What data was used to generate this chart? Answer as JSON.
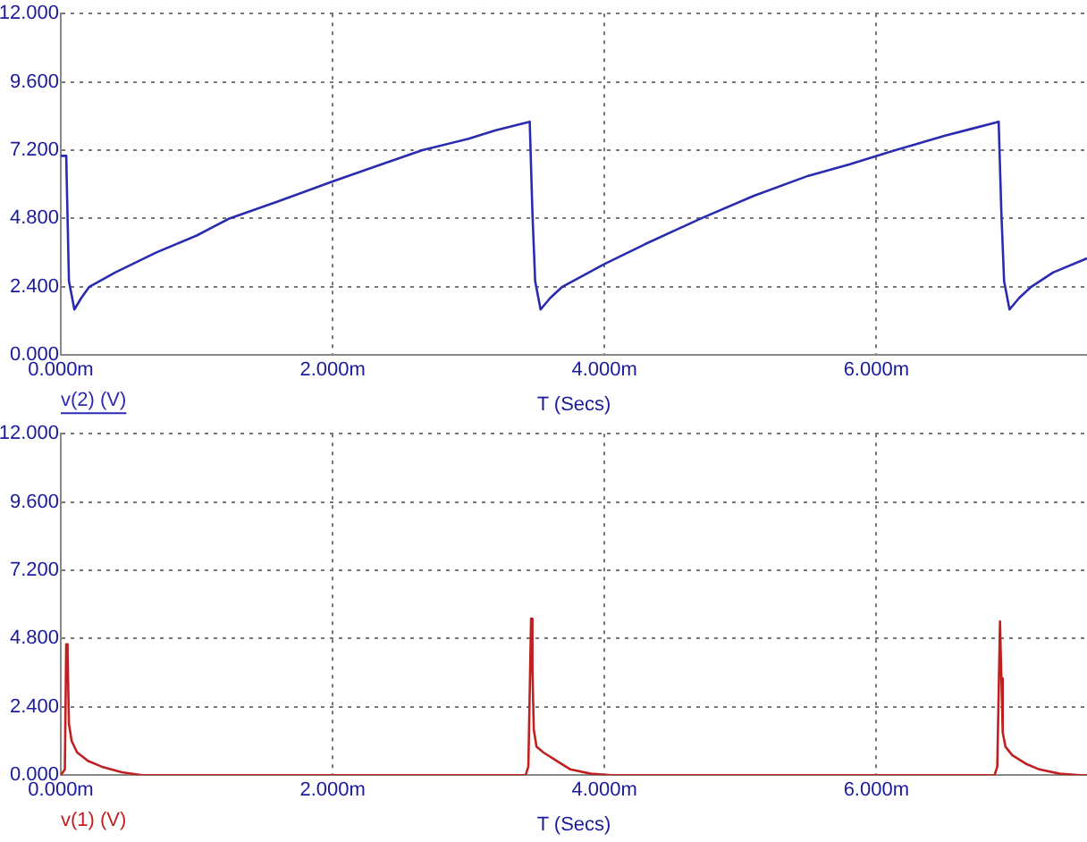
{
  "chart_data": [
    {
      "type": "line",
      "xlabel": "T (Secs)",
      "legend": "bottom left",
      "grid": true,
      "marker": "none",
      "line_style": "solid",
      "xlim": [
        0,
        7.55
      ],
      "xticks": [
        {
          "value": 0,
          "label": "0.000m"
        },
        {
          "value": 2,
          "label": "2.000m"
        },
        {
          "value": 4,
          "label": "4.000m"
        },
        {
          "value": 6,
          "label": "6.000m"
        }
      ],
      "ylim": [
        0,
        12
      ],
      "yticks": [
        {
          "value": 0,
          "label": "0.000"
        },
        {
          "value": 2.4,
          "label": "2.400"
        },
        {
          "value": 4.8,
          "label": "4.800"
        },
        {
          "value": 7.2,
          "label": "7.200"
        },
        {
          "value": 9.6,
          "label": "9.600"
        },
        {
          "value": 12,
          "label": "12.000"
        }
      ],
      "series": [
        {
          "name": "v(2) (V)",
          "color": "#2b2bb0",
          "x": [
            0,
            0.04,
            0.06,
            0.1,
            0.15,
            0.21,
            0.4,
            0.7,
            1.0,
            1.24,
            1.6,
            2.0,
            2.3,
            2.66,
            3.0,
            3.2,
            3.45,
            3.47,
            3.49,
            3.53,
            3.6,
            3.69,
            4.0,
            4.3,
            4.71,
            5.1,
            5.5,
            5.8,
            6.14,
            6.5,
            6.7,
            6.9,
            6.92,
            6.94,
            6.98,
            7.05,
            7.14,
            7.3,
            7.55
          ],
          "values": [
            7.0,
            7.0,
            2.6,
            1.6,
            2.0,
            2.4,
            2.9,
            3.6,
            4.2,
            4.8,
            5.4,
            6.1,
            6.6,
            7.2,
            7.6,
            7.9,
            8.2,
            5.0,
            2.6,
            1.6,
            2.0,
            2.4,
            3.2,
            3.9,
            4.8,
            5.6,
            6.3,
            6.7,
            7.2,
            7.7,
            7.95,
            8.2,
            5.0,
            2.6,
            1.6,
            2.0,
            2.4,
            2.9,
            3.4
          ]
        }
      ]
    },
    {
      "type": "line",
      "xlabel": "T (Secs)",
      "legend": "bottom left",
      "grid": true,
      "marker": "none",
      "line_style": "solid",
      "xlim": [
        0,
        7.55
      ],
      "xticks": [
        {
          "value": 0,
          "label": "0.000m"
        },
        {
          "value": 2,
          "label": "2.000m"
        },
        {
          "value": 4,
          "label": "4.000m"
        },
        {
          "value": 6,
          "label": "6.000m"
        }
      ],
      "ylim": [
        0,
        12
      ],
      "yticks": [
        {
          "value": 0,
          "label": "0.000"
        },
        {
          "value": 2.4,
          "label": "2.400"
        },
        {
          "value": 4.8,
          "label": "4.800"
        },
        {
          "value": 7.2,
          "label": "7.200"
        },
        {
          "value": 9.6,
          "label": "9.600"
        },
        {
          "value": 12,
          "label": "12.000"
        }
      ],
      "series": [
        {
          "name": "v(1) (V)",
          "color": "#c02020",
          "x": [
            0,
            0.03,
            0.04,
            0.05,
            0.06,
            0.08,
            0.12,
            0.2,
            0.3,
            0.45,
            0.6,
            3.42,
            3.44,
            3.46,
            3.47,
            3.48,
            3.5,
            3.55,
            3.65,
            3.75,
            3.9,
            4.05,
            6.87,
            6.89,
            6.91,
            6.92,
            6.93,
            6.95,
            7.0,
            7.1,
            7.2,
            7.35,
            7.5,
            7.55
          ],
          "values": [
            0,
            0.2,
            4.6,
            4.3,
            1.8,
            1.2,
            0.8,
            0.5,
            0.3,
            0.1,
            0,
            0,
            0.3,
            5.5,
            3.7,
            1.6,
            1.0,
            0.8,
            0.5,
            0.2,
            0.05,
            0,
            0,
            0.3,
            5.4,
            3.4,
            1.5,
            1.0,
            0.7,
            0.4,
            0.2,
            0.05,
            0,
            0
          ]
        }
      ]
    }
  ]
}
